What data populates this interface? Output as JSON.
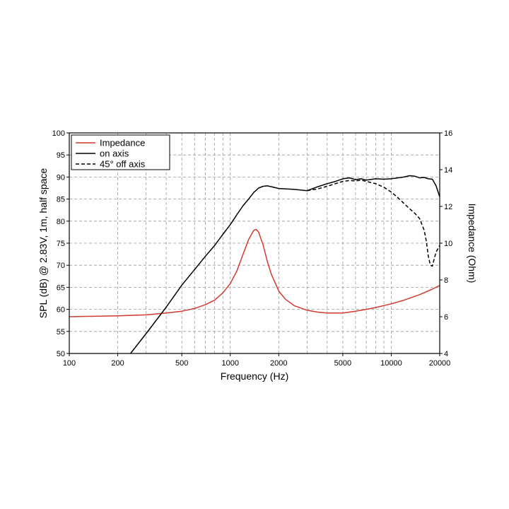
{
  "chart_data": {
    "type": "line",
    "xlabel": "Frequency (Hz)",
    "ylabel": "SPL (dB) @ 2.83V, 1m, half space",
    "y2label": "Impedance (Ohm)",
    "x_scale": "log",
    "xlim": [
      100,
      20000
    ],
    "ylim": [
      50,
      100
    ],
    "y2lim": [
      4,
      16
    ],
    "grid": true,
    "legend_placement": "top-left",
    "x_ticks": [
      100,
      200,
      500,
      1000,
      2000,
      5000,
      10000,
      20000
    ],
    "x_tick_labels": [
      "100",
      "200",
      "500",
      "1000",
      "2000",
      "5000",
      "10000",
      "20000"
    ],
    "y_ticks": [
      50,
      55,
      60,
      65,
      70,
      75,
      80,
      85,
      90,
      95,
      100
    ],
    "y2_ticks": [
      4,
      6,
      8,
      10,
      12,
      14,
      16
    ],
    "series": [
      {
        "name": "Impedance",
        "axis": "right",
        "color": "#d03a2f",
        "style": "solid",
        "x": [
          100,
          200,
          300,
          400,
          500,
          600,
          700,
          800,
          900,
          1000,
          1100,
          1200,
          1300,
          1400,
          1450,
          1500,
          1600,
          1700,
          1800,
          2000,
          2200,
          2500,
          3000,
          3500,
          4000,
          5000,
          6000,
          7000,
          8000,
          10000,
          12000,
          15000,
          18000,
          20000
        ],
        "y": [
          6.0,
          6.05,
          6.1,
          6.2,
          6.3,
          6.45,
          6.65,
          6.9,
          7.3,
          7.8,
          8.5,
          9.4,
          10.2,
          10.7,
          10.75,
          10.6,
          9.9,
          9.0,
          8.3,
          7.4,
          6.95,
          6.6,
          6.35,
          6.25,
          6.2,
          6.2,
          6.3,
          6.4,
          6.5,
          6.7,
          6.9,
          7.2,
          7.5,
          7.7
        ]
      },
      {
        "name": "on axis",
        "axis": "left",
        "color": "#000000",
        "style": "solid",
        "x": [
          240,
          300,
          400,
          500,
          600,
          700,
          800,
          900,
          1000,
          1100,
          1200,
          1300,
          1400,
          1500,
          1600,
          1700,
          1800,
          2000,
          2500,
          3000,
          3500,
          4000,
          4500,
          5000,
          5500,
          6000,
          6500,
          7000,
          8000,
          9000,
          10000,
          11000,
          12000,
          13000,
          14000,
          15000,
          16000,
          17000,
          18000,
          19000,
          20000
        ],
        "y": [
          50,
          54.5,
          60.5,
          65.5,
          69,
          72,
          74.5,
          77,
          79.2,
          81.5,
          83.5,
          85,
          86.5,
          87.5,
          87.9,
          88.0,
          87.8,
          87.4,
          87.2,
          86.9,
          87.8,
          88.5,
          89.0,
          89.6,
          89.8,
          89.4,
          89.6,
          89.3,
          89.6,
          89.5,
          89.6,
          89.8,
          90.0,
          90.3,
          90.2,
          89.8,
          89.9,
          89.6,
          89.5,
          88.0,
          85.5
        ]
      },
      {
        "name": "45° off axis",
        "axis": "left",
        "color": "#000000",
        "style": "dashed",
        "x": [
          3000,
          3500,
          4000,
          4500,
          5000,
          5500,
          6000,
          6500,
          7000,
          8000,
          9000,
          10000,
          11000,
          12000,
          13000,
          14000,
          15000,
          16000,
          16500,
          17000,
          17500,
          18000,
          18500,
          19000,
          20000
        ],
        "y": [
          86.9,
          87.3,
          87.9,
          88.5,
          89.0,
          89.2,
          89.1,
          89.3,
          89.0,
          88.5,
          87.7,
          86.6,
          85.3,
          84.0,
          82.8,
          81.8,
          80.6,
          78.0,
          75.5,
          72.0,
          70.0,
          69.8,
          71.5,
          73.0,
          74.5
        ]
      }
    ]
  }
}
